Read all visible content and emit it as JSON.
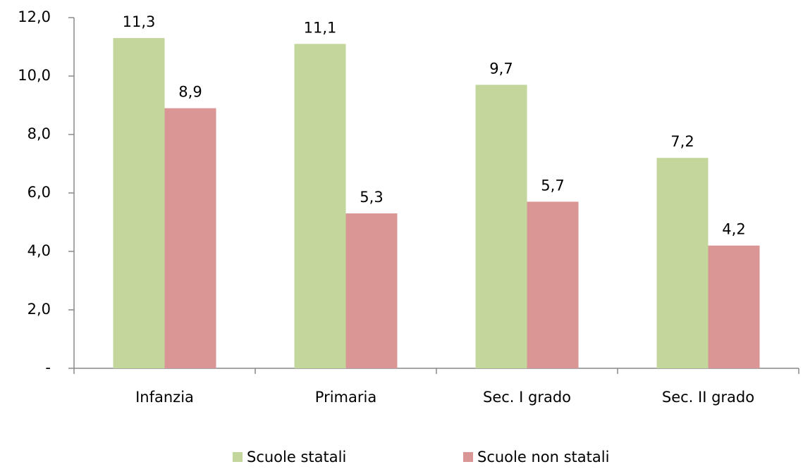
{
  "chart_data": {
    "type": "bar",
    "categories": [
      "Infanzia",
      "Primaria",
      "Sec. I grado",
      "Sec. II grado"
    ],
    "series": [
      {
        "name": "Scuole statali",
        "color": "#c3d69b",
        "values": [
          11.3,
          11.1,
          9.7,
          7.2
        ],
        "value_labels": [
          "11,3",
          "11,1",
          "9,7",
          "7,2"
        ]
      },
      {
        "name": "Scuole non statali",
        "color": "#d99694",
        "values": [
          8.9,
          5.3,
          5.7,
          4.2
        ],
        "value_labels": [
          "8,9",
          "5,3",
          "5,7",
          "4,2"
        ]
      }
    ],
    "ylim": [
      0,
      12
    ],
    "yticks": [
      {
        "value": 0,
        "label": "-"
      },
      {
        "value": 2,
        "label": "2,0"
      },
      {
        "value": 4,
        "label": "4,0"
      },
      {
        "value": 6,
        "label": "6,0"
      },
      {
        "value": 8,
        "label": "8,0"
      },
      {
        "value": 10,
        "label": "10,0"
      },
      {
        "value": 12,
        "label": "12,0"
      }
    ],
    "grid": false,
    "legend": "bottom"
  }
}
